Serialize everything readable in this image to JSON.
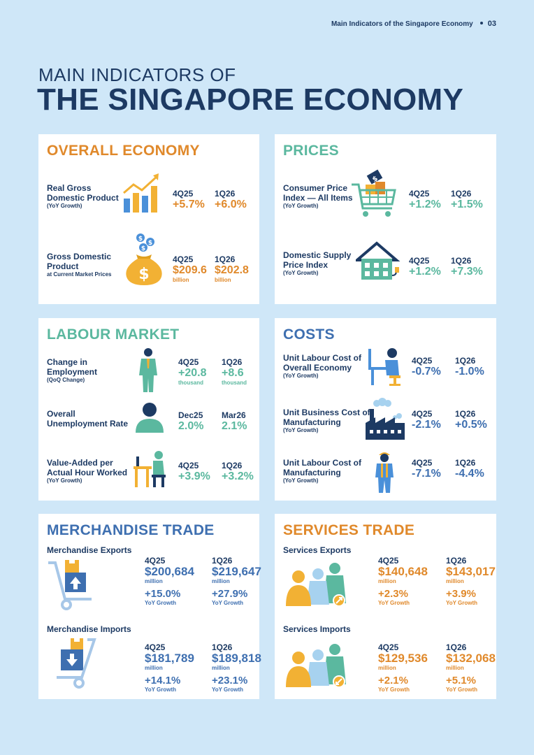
{
  "header": {
    "section": "Main Indicators of the Singapore Economy",
    "page": "03"
  },
  "title": {
    "line1": "MAIN INDICATORS OF",
    "line2": "THE SINGAPORE ECONOMY"
  },
  "colors": {
    "navy": "#1d3a63",
    "orange": "#e0892b",
    "teal": "#5bb89f",
    "blue": "#3e6fb0",
    "background": "#cfe7f8"
  },
  "overall": {
    "title": "OVERALL ECONOMY",
    "rgdp": {
      "label1": "Real Gross",
      "label2": "Domestic Product",
      "sub": "(YoY Growth)",
      "icon": "bar-chart-icon",
      "p1": "4Q25",
      "v1": "+5.7%",
      "p2": "1Q26",
      "v2": "+6.0%"
    },
    "gdp": {
      "label1": "Gross Domestic",
      "label2": "Product",
      "sub": "at Current Market Prices",
      "icon": "money-bag-icon",
      "p1": "4Q25",
      "v1": "$209.6",
      "u1": "billion",
      "p2": "1Q26",
      "v2": "$202.8",
      "u2": "billion"
    }
  },
  "prices": {
    "title": "PRICES",
    "cpi": {
      "label1": "Consumer Price",
      "label2": "Index — All Items",
      "sub": "(YoY Growth)",
      "icon": "shopping-cart-icon",
      "p1": "4Q25",
      "v1": "+1.2%",
      "p2": "1Q26",
      "v2": "+1.5%"
    },
    "dspi": {
      "label1": "Domestic Supply",
      "label2": "Price Index",
      "sub": "(YoY Growth)",
      "icon": "house-plug-icon",
      "p1": "4Q25",
      "v1": "+1.2%",
      "p2": "1Q26",
      "v2": "+7.3%"
    }
  },
  "labour": {
    "title": "LABOUR MARKET",
    "emp": {
      "label1": "Change in",
      "label2": "Employment",
      "sub": "(QoQ Change)",
      "icon": "worker-icon",
      "p1": "4Q25",
      "v1": "+20.8",
      "u1": "thousand",
      "p2": "1Q26",
      "v2": "+8.6",
      "u2": "thousand"
    },
    "unemp": {
      "label1": "Overall",
      "label2": "Unemployment Rate",
      "icon": "person-icon",
      "p1": "Dec25",
      "v1": "2.0%",
      "p2": "Mar26",
      "v2": "2.1%"
    },
    "va": {
      "label1": "Value-Added per",
      "label2": "Actual Hour Worked",
      "sub": "(YoY Growth)",
      "icon": "desk-worker-icon",
      "p1": "4Q25",
      "v1": "+3.9%",
      "p2": "1Q26",
      "v2": "+3.2%"
    }
  },
  "costs": {
    "title": "COSTS",
    "ulc": {
      "label1": "Unit Labour Cost of",
      "label2": "Overall Economy",
      "sub": "(YoY Growth)",
      "icon": "office-worker-icon",
      "p1": "4Q25",
      "v1": "-0.7%",
      "p2": "1Q26",
      "v2": "-1.0%"
    },
    "ubc": {
      "label1": "Unit Business Cost of",
      "label2": "Manufacturing",
      "sub": "(YoY Growth)",
      "icon": "factory-icon",
      "p1": "4Q25",
      "v1": "-2.1%",
      "p2": "1Q26",
      "v2": "+0.5%"
    },
    "ulcm": {
      "label1": "Unit Labour Cost of",
      "label2": "Manufacturing",
      "sub": "(YoY Growth)",
      "icon": "factory-worker-icon",
      "p1": "4Q25",
      "v1": "-7.1%",
      "p2": "1Q26",
      "v2": "-4.4%"
    }
  },
  "merch": {
    "title": "MERCHANDISE TRADE",
    "exports": {
      "label": "Merchandise Exports",
      "icon": "hand-truck-up-icon",
      "p1": "4Q25",
      "v1": "$200,684",
      "u1": "million",
      "g1": "+15.0%",
      "gl1": "YoY Growth",
      "p2": "1Q26",
      "v2": "$219,647",
      "u2": "million",
      "g2": "+27.9%",
      "gl2": "YoY Growth"
    },
    "imports": {
      "label": "Merchandise Imports",
      "icon": "hand-truck-down-icon",
      "p1": "4Q25",
      "v1": "$181,789",
      "u1": "million",
      "g1": "+14.1%",
      "gl1": "YoY Growth",
      "p2": "1Q26",
      "v2": "$189,818",
      "u2": "million",
      "g2": "+23.1%",
      "gl2": "YoY Growth"
    }
  },
  "services": {
    "title": "SERVICES TRADE",
    "exports": {
      "label": "Services Exports",
      "icon": "people-export-icon",
      "p1": "4Q25",
      "v1": "$140,648",
      "u1": "million",
      "g1": "+2.3%",
      "gl1": "YoY Growth",
      "p2": "1Q26",
      "v2": "$143,017",
      "u2": "million",
      "g2": "+3.9%",
      "gl2": "YoY Growth"
    },
    "imports": {
      "label": "Services Imports",
      "icon": "people-import-icon",
      "p1": "4Q25",
      "v1": "$129,536",
      "u1": "million",
      "g1": "+2.1%",
      "gl1": "YoY Growth",
      "p2": "1Q26",
      "v2": "$132,068",
      "u2": "million",
      "g2": "+5.1%",
      "gl2": "YoY Growth"
    }
  }
}
